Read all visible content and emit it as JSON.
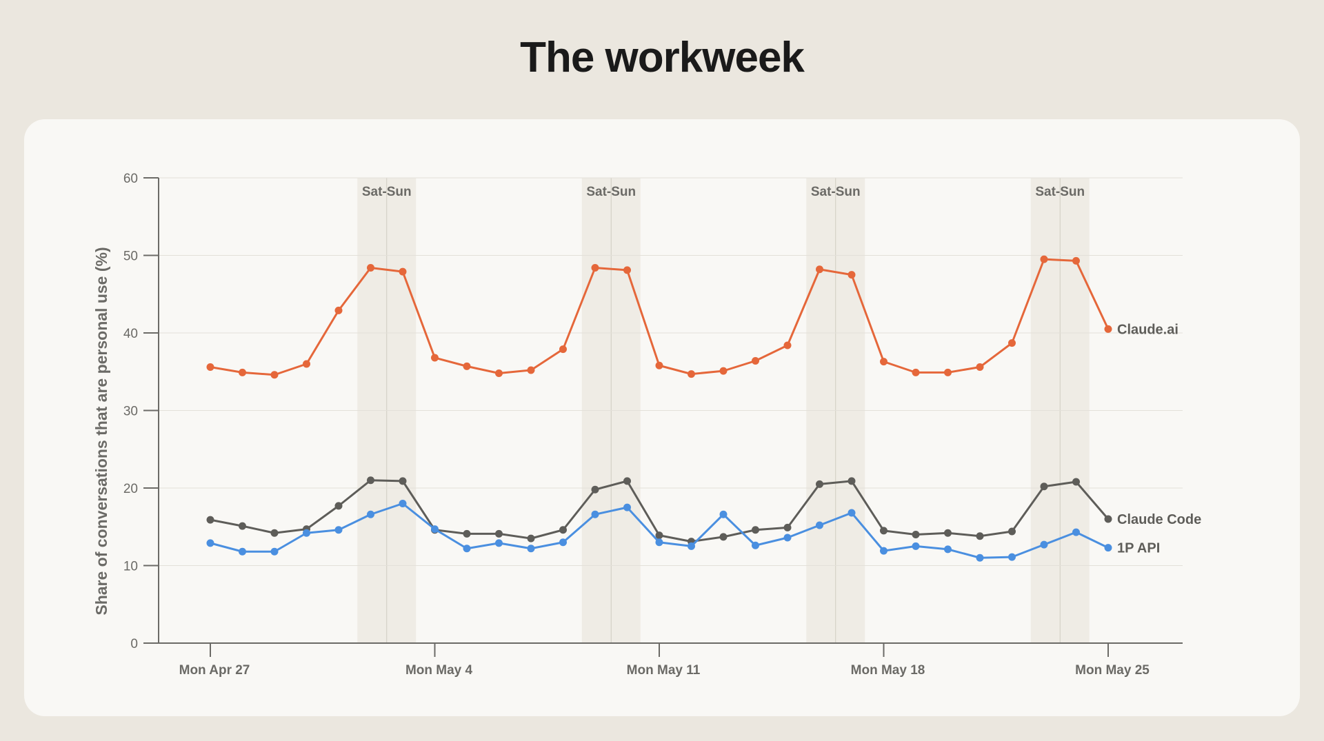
{
  "page": {
    "title": "The workweek"
  },
  "chart_data": {
    "type": "line",
    "title": "The workweek",
    "xlabel": "",
    "ylabel": "Share of conversations that are personal use (%)",
    "ylim": [
      0,
      60
    ],
    "yticks": [
      0,
      10,
      20,
      30,
      40,
      50,
      60
    ],
    "grid": true,
    "x_dates": [
      "Apr 27",
      "Apr 28",
      "Apr 29",
      "Apr 30",
      "May 1",
      "May 2",
      "May 3",
      "May 4",
      "May 5",
      "May 6",
      "May 7",
      "May 8",
      "May 9",
      "May 10",
      "May 11",
      "May 12",
      "May 13",
      "May 14",
      "May 15",
      "May 16",
      "May 17",
      "May 18",
      "May 19",
      "May 20",
      "May 21",
      "May 22",
      "May 23",
      "May 24",
      "May 25"
    ],
    "xticks": [
      {
        "label": "Mon Apr 27",
        "index": 0
      },
      {
        "label": "Mon May 4",
        "index": 7
      },
      {
        "label": "Mon May 11",
        "index": 14
      },
      {
        "label": "Mon May 18",
        "index": 21
      },
      {
        "label": "Mon May 25",
        "index": 28
      }
    ],
    "weekends": [
      {
        "label": "Sat-Sun",
        "start": "May 2",
        "end": "May 3"
      },
      {
        "label": "Sat-Sun",
        "start": "May 9",
        "end": "May 10"
      },
      {
        "label": "Sat-Sun",
        "start": "May 16",
        "end": "May 17"
      },
      {
        "label": "Sat-Sun",
        "start": "May 23",
        "end": "May 24"
      }
    ],
    "series": [
      {
        "name": "Claude.ai",
        "color": "#e5673a",
        "values": [
          35.6,
          34.9,
          34.6,
          36.0,
          42.9,
          48.4,
          47.9,
          36.8,
          35.7,
          34.8,
          35.2,
          37.9,
          48.4,
          48.1,
          35.8,
          34.7,
          35.1,
          36.4,
          38.4,
          48.2,
          47.5,
          36.3,
          34.9,
          34.9,
          35.6,
          38.7,
          49.5,
          49.3,
          40.5
        ]
      },
      {
        "name": "Claude Code",
        "color": "#5e5d59",
        "values": [
          15.9,
          15.1,
          14.2,
          14.7,
          17.7,
          21.0,
          20.9,
          14.6,
          14.1,
          14.1,
          13.5,
          14.6,
          19.8,
          20.9,
          13.9,
          13.1,
          13.7,
          14.6,
          14.9,
          20.5,
          20.9,
          14.5,
          14.0,
          14.2,
          13.8,
          14.4,
          20.2,
          20.8,
          16.0
        ]
      },
      {
        "name": "1P API",
        "color": "#4a8fe0",
        "values": [
          12.9,
          11.8,
          11.8,
          14.2,
          14.6,
          16.6,
          18.0,
          14.7,
          12.2,
          12.9,
          12.2,
          13.0,
          16.6,
          17.5,
          13.0,
          12.5,
          16.6,
          12.6,
          13.6,
          15.2,
          16.8,
          11.9,
          12.5,
          12.1,
          11.0,
          11.1,
          12.7,
          14.3,
          12.3
        ]
      }
    ]
  }
}
